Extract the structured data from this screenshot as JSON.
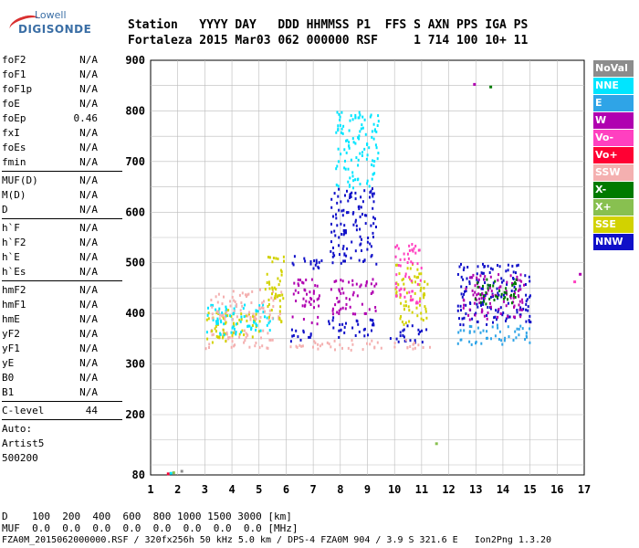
{
  "logo": {
    "line1": "Lowell",
    "line2": "DIGISONDE"
  },
  "header": {
    "row1": "Station   YYYY DAY   DDD HHMMSS P1  FFS S AXN PPS IGA PS",
    "row2": "Fortaleza 2015 Mar03 062 000000 RSF     1 714 100 10+ 11"
  },
  "params": [
    {
      "label": "foF2",
      "value": "N/A"
    },
    {
      "label": "foF1",
      "value": "N/A"
    },
    {
      "label": "foF1p",
      "value": "N/A"
    },
    {
      "label": "foE",
      "value": "N/A"
    },
    {
      "label": "foEp",
      "value": "0.46"
    },
    {
      "label": "fxI",
      "value": "N/A"
    },
    {
      "label": "foEs",
      "value": "N/A"
    },
    {
      "label": "fmin",
      "value": "N/A"
    },
    {
      "sep": true
    },
    {
      "label": "MUF(D)",
      "value": "N/A"
    },
    {
      "label": "M(D)",
      "value": "N/A"
    },
    {
      "label": "D",
      "value": "N/A"
    },
    {
      "sep": true
    },
    {
      "label": "h`F",
      "value": "N/A"
    },
    {
      "label": "h`F2",
      "value": "N/A"
    },
    {
      "label": "h`E",
      "value": "N/A"
    },
    {
      "label": "h`Es",
      "value": "N/A"
    },
    {
      "sep": true
    },
    {
      "label": "hmF2",
      "value": "N/A"
    },
    {
      "label": "hmF1",
      "value": "N/A"
    },
    {
      "label": "hmE",
      "value": "N/A"
    },
    {
      "label": "yF2",
      "value": "N/A"
    },
    {
      "label": "yF1",
      "value": "N/A"
    },
    {
      "label": "yE",
      "value": "N/A"
    },
    {
      "label": "B0",
      "value": "N/A"
    },
    {
      "label": "B1",
      "value": "N/A"
    },
    {
      "sep": true
    },
    {
      "label": "C-level",
      "value": "44"
    },
    {
      "sep": true
    }
  ],
  "notes": [
    "Auto:",
    "Artist5",
    "500200"
  ],
  "legend": [
    {
      "label": "NoVal",
      "color": "#8c8c8c"
    },
    {
      "label": "NNE",
      "color": "#00e5ff"
    },
    {
      "label": "E",
      "color": "#2fa4e7"
    },
    {
      "label": "W",
      "color": "#b000b0"
    },
    {
      "label": "Vo-",
      "color": "#ff40c0"
    },
    {
      "label": "Vo+",
      "color": "#ff0033"
    },
    {
      "label": "SSW",
      "color": "#f4b0b0"
    },
    {
      "label": "X-",
      "color": "#007a00"
    },
    {
      "label": "X+",
      "color": "#88c050"
    },
    {
      "label": "SSE",
      "color": "#d2d200"
    },
    {
      "label": "NNW",
      "color": "#1010c8"
    }
  ],
  "footer": {
    "d_row": "D    100  200  400  600  800 1000 1500 3000 [km]",
    "muf_row": "MUF  0.0  0.0  0.0  0.0  0.0  0.0  0.0  0.0 [MHz]",
    "info": "FZA0M_2015062000000.RSF / 320fx256h 50 kHz 5.0 km / DPS-4 FZA0M 904 / 3.9 S 321.6 E   Ion2Png 1.3.20"
  },
  "chart_data": {
    "type": "scatter",
    "xlim": [
      1,
      17
    ],
    "ylim": [
      80,
      900
    ],
    "xticks": [
      1,
      2,
      3,
      4,
      5,
      6,
      7,
      8,
      9,
      10,
      11,
      12,
      13,
      14,
      15,
      16,
      17
    ],
    "yticks": [
      80,
      200,
      300,
      400,
      500,
      600,
      700,
      800,
      900
    ],
    "grid": true,
    "clusters": [
      {
        "x": [
          3.0,
          5.5
        ],
        "y": [
          330,
          370
        ],
        "color": "#f4b0b0"
      },
      {
        "x": [
          3.0,
          5.0
        ],
        "y": [
          345,
          410
        ],
        "color": "#d2d200"
      },
      {
        "x": [
          3.0,
          5.6
        ],
        "y": [
          360,
          420
        ],
        "color": "#00e5ff"
      },
      {
        "x": [
          3.2,
          5.8
        ],
        "y": [
          390,
          450
        ],
        "color": "#f4b0b0"
      },
      {
        "x": [
          5.2,
          5.9
        ],
        "y": [
          380,
          520
        ],
        "color": "#d2d200"
      },
      {
        "x": [
          6.1,
          6.9
        ],
        "y": [
          340,
          375
        ],
        "color": "#1010c8"
      },
      {
        "x": [
          6.2,
          7.2
        ],
        "y": [
          380,
          470
        ],
        "color": "#b000b0"
      },
      {
        "x": [
          6.1,
          7.3
        ],
        "y": [
          490,
          520
        ],
        "color": "#1010c8"
      },
      {
        "x": [
          6.0,
          9.5
        ],
        "y": [
          330,
          350
        ],
        "color": "#f4b0b0"
      },
      {
        "x": [
          7.5,
          9.2
        ],
        "y": [
          355,
          395
        ],
        "color": "#1010c8"
      },
      {
        "x": [
          7.6,
          9.3
        ],
        "y": [
          400,
          470
        ],
        "color": "#b000b0"
      },
      {
        "x": [
          7.6,
          9.3
        ],
        "y": [
          500,
          650
        ],
        "color": "#1010c8"
      },
      {
        "x": [
          7.8,
          9.4
        ],
        "y": [
          650,
          800
        ],
        "color": "#00e5ff"
      },
      {
        "x": [
          9.8,
          11.2
        ],
        "y": [
          345,
          380
        ],
        "color": "#1010c8"
      },
      {
        "x": [
          9.8,
          11.3
        ],
        "y": [
          330,
          350
        ],
        "color": "#f4b0b0"
      },
      {
        "x": [
          10.0,
          11.2
        ],
        "y": [
          380,
          500
        ],
        "color": "#d2d200"
      },
      {
        "x": [
          10.0,
          11.0
        ],
        "y": [
          420,
          540
        ],
        "color": "#ff40c0"
      },
      {
        "x": [
          12.3,
          15.0
        ],
        "y": [
          340,
          380
        ],
        "color": "#2fa4e7"
      },
      {
        "x": [
          12.3,
          15.0
        ],
        "y": [
          380,
          500
        ],
        "color": "#1010c8"
      },
      {
        "x": [
          12.5,
          14.8
        ],
        "y": [
          390,
          480
        ],
        "color": "#b000b0"
      },
      {
        "x": [
          12.8,
          14.5
        ],
        "y": [
          420,
          470
        ],
        "color": "#007a00"
      }
    ],
    "points": [
      {
        "x": 1.6,
        "y": 85,
        "color": "#ff0033"
      },
      {
        "x": 1.7,
        "y": 86,
        "color": "#00e5ff"
      },
      {
        "x": 1.8,
        "y": 87,
        "color": "#88c050"
      },
      {
        "x": 2.1,
        "y": 90,
        "color": "#8c8c8c"
      },
      {
        "x": 12.9,
        "y": 855,
        "color": "#b000b0"
      },
      {
        "x": 13.5,
        "y": 850,
        "color": "#007a00"
      },
      {
        "x": 16.6,
        "y": 465,
        "color": "#ff40c0"
      },
      {
        "x": 16.8,
        "y": 480,
        "color": "#b000b0"
      },
      {
        "x": 11.5,
        "y": 145,
        "color": "#88c050"
      }
    ]
  }
}
